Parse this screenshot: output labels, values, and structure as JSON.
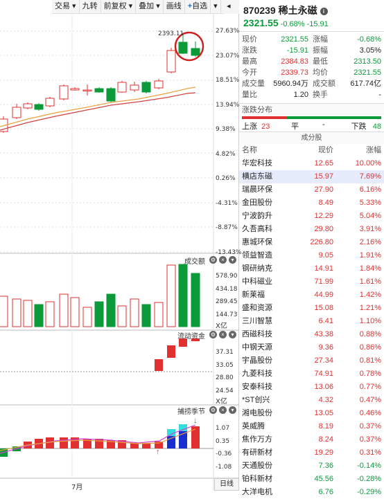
{
  "toolbar": {
    "items": [
      "交易",
      "九转",
      "前复权",
      "叠加",
      "画线",
      "自选"
    ]
  },
  "chart": {
    "price_ticks": [
      "27.63%",
      "23.07%",
      "18.51%",
      "13.94%",
      "9.38%",
      "4.82%",
      "0.26%",
      "-4.31%",
      "-8.87%",
      "-13.43%"
    ],
    "high_label": "2393.11",
    "volume_title": "成交额",
    "volume_ticks": [
      "578.90",
      "434.18",
      "289.45",
      "144.73"
    ],
    "volume_unit": "X亿",
    "flow_title": "流动资金",
    "flow_ticks": [
      "37.31",
      "33.05",
      "28.80",
      "24.54"
    ],
    "flow_unit": "X亿",
    "ind_title": "捕捞季节",
    "ind_ticks": [
      "1.07",
      "0.35",
      "-0.36",
      "-1.08"
    ],
    "month": "7月",
    "period": "日线",
    "colors": {
      "up": "#e03030",
      "down": "#0a9a3a"
    }
  },
  "quote": {
    "code": "870239",
    "name": "稀土永磁",
    "price": "2321.55",
    "change": "-0.68% -15.91",
    "grid": [
      {
        "l": "现价",
        "v": "2321.55",
        "vc": "green",
        "l2": "涨幅",
        "v2": "-0.68%",
        "v2c": "green"
      },
      {
        "l": "涨跌",
        "v": "-15.91",
        "vc": "green",
        "l2": "振幅",
        "v2": "3.05%",
        "v2c": ""
      },
      {
        "l": "最高",
        "v": "2384.83",
        "vc": "red",
        "l2": "最低",
        "v2": "2313.50",
        "v2c": "green"
      },
      {
        "l": "今开",
        "v": "2339.73",
        "vc": "red",
        "l2": "均价",
        "v2": "2321.55",
        "v2c": "green"
      },
      {
        "l": "成交量",
        "v": "5960.94万",
        "vc": "",
        "l2": "成交额",
        "v2": "617.74亿",
        "v2c": ""
      },
      {
        "l": "量比",
        "v": "1.20",
        "vc": "",
        "l2": "换手",
        "v2": "-",
        "v2c": ""
      }
    ],
    "dist_title": "涨跌分布",
    "up_label": "上涨",
    "up_count": "23",
    "flat_label": "平",
    "flat_count": "-",
    "down_label": "下跌",
    "down_count": "48",
    "cons_title": "成分股",
    "col_name": "名称",
    "col_price": "现价",
    "col_change": "涨幅"
  },
  "stocks": [
    {
      "n": "华宏科技",
      "p": "12.65",
      "c": "10.00%"
    },
    {
      "n": "横店东磁",
      "p": "15.97",
      "c": "7.69%"
    },
    {
      "n": "瑞晨环保",
      "p": "27.90",
      "c": "6.16%"
    },
    {
      "n": "金田股份",
      "p": "8.49",
      "c": "5.33%"
    },
    {
      "n": "宁波韵升",
      "p": "12.29",
      "c": "5.04%"
    },
    {
      "n": "久吾高科",
      "p": "29.80",
      "c": "3.91%"
    },
    {
      "n": "惠城环保",
      "p": "226.80",
      "c": "2.16%"
    },
    {
      "n": "领益智造",
      "p": "9.05",
      "c": "1.91%"
    },
    {
      "n": "钢研纳克",
      "p": "14.91",
      "c": "1.84%"
    },
    {
      "n": "中科磁业",
      "p": "71.99",
      "c": "1.61%"
    },
    {
      "n": "新莱福",
      "p": "44.99",
      "c": "1.42%"
    },
    {
      "n": "盛和资源",
      "p": "15.08",
      "c": "1.21%"
    },
    {
      "n": "三川智慧",
      "p": "6.41",
      "c": "1.10%"
    },
    {
      "n": "西磁科技",
      "p": "43.38",
      "c": "0.88%"
    },
    {
      "n": "中钢天源",
      "p": "9.36",
      "c": "0.86%"
    },
    {
      "n": "宇晶股份",
      "p": "27.34",
      "c": "0.81%"
    },
    {
      "n": "九菱科技",
      "p": "74.91",
      "c": "0.78%"
    },
    {
      "n": "安泰科技",
      "p": "13.06",
      "c": "0.77%"
    },
    {
      "n": "*ST创兴",
      "p": "4.32",
      "c": "0.47%"
    },
    {
      "n": "湘电股份",
      "p": "13.05",
      "c": "0.46%"
    },
    {
      "n": "英威腾",
      "p": "8.19",
      "c": "0.37%"
    },
    {
      "n": "焦作万方",
      "p": "8.24",
      "c": "0.37%"
    },
    {
      "n": "有研新材",
      "p": "19.29",
      "c": "0.31%"
    },
    {
      "n": "天通股份",
      "p": "7.36",
      "c": "-0.14%"
    },
    {
      "n": "铂科新材",
      "p": "45.56",
      "c": "-0.28%"
    },
    {
      "n": "大洋电机",
      "p": "6.76",
      "c": "-0.29%"
    }
  ]
}
